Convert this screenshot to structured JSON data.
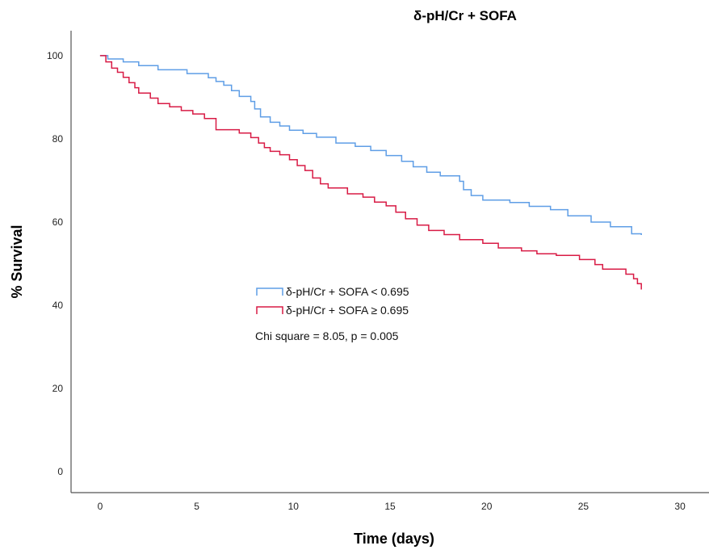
{
  "chart_data": {
    "type": "line",
    "title": "δ-pH/Cr + SOFA",
    "xlabel": "Time (days)",
    "ylabel": "% Survival",
    "xlim": [
      -1.5,
      31.5
    ],
    "ylim": [
      -5,
      106
    ],
    "xticks": [
      0,
      5,
      10,
      15,
      20,
      25,
      30
    ],
    "yticks": [
      0,
      20,
      40,
      60,
      80,
      100
    ],
    "grid": false,
    "legend_position": "center-left",
    "annotation": "Chi square = 8.05, p = 0.005",
    "series": [
      {
        "name": "δ-pH/Cr + SOFA < 0.695",
        "color": "#5f9ee6",
        "step": true,
        "x": [
          0,
          0.4,
          1.2,
          2.0,
          3.0,
          4.5,
          5.6,
          6.0,
          6.4,
          6.8,
          7.2,
          7.8,
          8.0,
          8.3,
          8.8,
          9.3,
          9.8,
          10.5,
          11.2,
          12.2,
          13.2,
          14.0,
          14.8,
          15.6,
          16.2,
          16.9,
          17.6,
          18.6,
          18.8,
          19.2,
          19.8,
          21.2,
          22.2,
          23.3,
          24.2,
          25.4,
          26.4,
          27.5,
          28.0
        ],
        "y": [
          100,
          99.2,
          98.5,
          97.6,
          96.6,
          95.7,
          94.7,
          93.8,
          92.9,
          91.6,
          90.2,
          89.0,
          87.2,
          85.3,
          84.0,
          83.1,
          82.1,
          81.3,
          80.4,
          79.0,
          78.2,
          77.2,
          76.0,
          74.6,
          73.3,
          72.0,
          71.1,
          69.8,
          67.8,
          66.4,
          65.3,
          64.7,
          63.8,
          63.0,
          61.5,
          60.0,
          58.9,
          57.2,
          56.9
        ]
      },
      {
        "name": "δ-pH/Cr + SOFA ≥ 0.695",
        "color": "#d81b45",
        "step": true,
        "x": [
          0,
          0.3,
          0.6,
          0.9,
          1.2,
          1.5,
          1.8,
          2.0,
          2.6,
          3.0,
          3.6,
          4.2,
          4.8,
          5.4,
          6.0,
          7.2,
          7.8,
          8.2,
          8.5,
          8.8,
          9.3,
          9.8,
          10.2,
          10.6,
          11.0,
          11.4,
          11.8,
          12.8,
          13.6,
          14.2,
          14.8,
          15.3,
          15.8,
          16.4,
          17.0,
          17.8,
          18.6,
          19.8,
          20.6,
          21.8,
          22.6,
          23.6,
          24.8,
          25.6,
          26.0,
          27.2,
          27.6,
          27.8,
          28.0
        ],
        "y": [
          100,
          98.5,
          97.0,
          96.0,
          94.8,
          93.5,
          92.3,
          91.0,
          89.8,
          88.5,
          87.7,
          86.8,
          86.0,
          84.9,
          82.2,
          81.4,
          80.3,
          79.0,
          77.9,
          77.0,
          76.2,
          75.0,
          73.6,
          72.4,
          70.6,
          69.2,
          68.2,
          66.8,
          66.0,
          64.8,
          63.9,
          62.4,
          60.8,
          59.3,
          58.0,
          57.0,
          55.8,
          54.9,
          53.8,
          53.1,
          52.4,
          52.0,
          51.0,
          49.8,
          48.7,
          47.5,
          46.4,
          45.2,
          43.8
        ]
      }
    ]
  }
}
